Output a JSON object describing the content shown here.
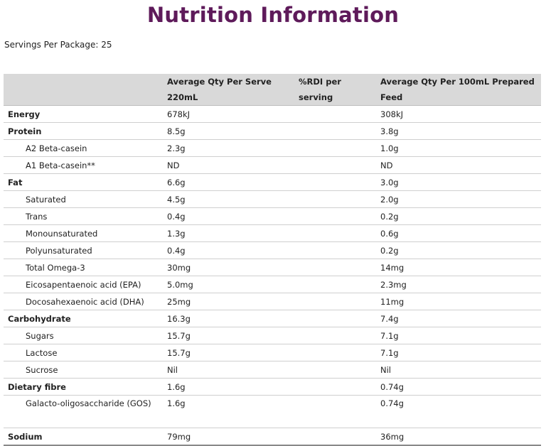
{
  "title": "Nutrition Information",
  "servings": "Servings Per Package: 25",
  "table": {
    "headers": [
      "",
      "Average Qty Per Serve 220mL",
      "%RDI per serving",
      "Average Qty Per 100mL Prepared Feed"
    ],
    "rows": [
      {
        "label": "Energy",
        "serve": "678kJ",
        "rdi": "",
        "per100": "308kJ"
      },
      {
        "label": "Protein",
        "serve": "8.5g",
        "rdi": "",
        "per100": "3.8g"
      },
      {
        "label": "A2 Beta-casein",
        "serve": "2.3g",
        "rdi": "",
        "per100": "1.0g"
      },
      {
        "label": "A1 Beta-casein**",
        "serve": "ND",
        "rdi": "",
        "per100": "ND"
      },
      {
        "label": "Fat",
        "serve": "6.6g",
        "rdi": "",
        "per100": "3.0g"
      },
      {
        "label": "Saturated",
        "serve": "4.5g",
        "rdi": "",
        "per100": "2.0g"
      },
      {
        "label": "Trans",
        "serve": "0.4g",
        "rdi": "",
        "per100": "0.2g"
      },
      {
        "label": "Monounsaturated",
        "serve": "1.3g",
        "rdi": "",
        "per100": "0.6g"
      },
      {
        "label": "Polyunsaturated",
        "serve": "0.4g",
        "rdi": "",
        "per100": "0.2g"
      },
      {
        "label": "Total Omega-3",
        "serve": "30mg",
        "rdi": "",
        "per100": "14mg"
      },
      {
        "label": "Eicosapentaenoic acid (EPA)",
        "serve": "5.0mg",
        "rdi": "",
        "per100": "2.3mg"
      },
      {
        "label": "Docosahexaenoic acid (DHA)",
        "serve": "25mg",
        "rdi": "",
        "per100": "11mg"
      },
      {
        "label": "Carbohydrate",
        "serve": "16.3g",
        "rdi": "",
        "per100": "7.4g"
      },
      {
        "label": "Sugars",
        "serve": "15.7g",
        "rdi": "",
        "per100": "7.1g"
      },
      {
        "label": "Lactose",
        "serve": "15.7g",
        "rdi": "",
        "per100": "7.1g"
      },
      {
        "label": "Sucrose",
        "serve": "Nil",
        "rdi": "",
        "per100": "Nil"
      },
      {
        "label": "Dietary fibre",
        "serve": "1.6g",
        "rdi": "",
        "per100": "0.74g"
      },
      {
        "label": "Galacto-oligosaccharide (GOS)",
        "serve": "1.6g",
        "rdi": "",
        "per100": "0.74g"
      },
      {
        "label": "Sodium",
        "serve": "79mg",
        "rdi": "",
        "per100": "36mg"
      }
    ]
  }
}
